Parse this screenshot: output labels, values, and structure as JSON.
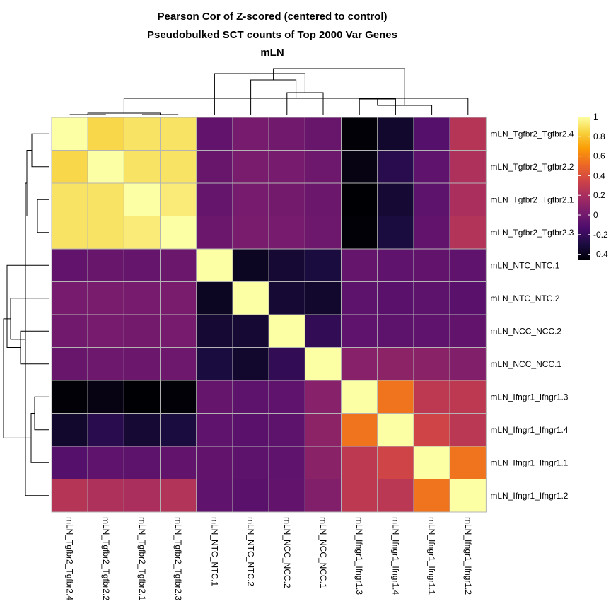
{
  "chart_data": {
    "type": "heatmap",
    "title_lines": [
      "Pearson Cor of Z-scored (centered to control)",
      "Pseudobulked SCT counts of Top 2000 Var Genes",
      "mLN"
    ],
    "row_labels": [
      "mLN_Tgfbr2_Tgfbr2.4",
      "mLN_Tgfbr2_Tgfbr2.2",
      "mLN_Tgfbr2_Tgfbr2.1",
      "mLN_Tgfbr2_Tgfbr2.3",
      "mLN_NTC_NTC.1",
      "mLN_NTC_NTC.2",
      "mLN_NCC_NCC.2",
      "mLN_NCC_NCC.1",
      "mLN_Ifngr1_Ifngr1.3",
      "mLN_Ifngr1_Ifngr1.4",
      "mLN_Ifngr1_Ifngr1.1",
      "mLN_Ifngr1_Ifngr1.2"
    ],
    "col_labels": [
      "mLN_Tgfbr2_Tgfbr2.4",
      "mLN_Tgfbr2_Tgfbr2.2",
      "mLN_Tgfbr2_Tgfbr2.1",
      "mLN_Tgfbr2_Tgfbr2.3",
      "mLN_NTC_NTC.1",
      "mLN_NTC_NTC.2",
      "mLN_NCC_NCC.2",
      "mLN_NCC_NCC.1",
      "mLN_Ifngr1_Ifngr1.3",
      "mLN_Ifngr1_Ifngr1.4",
      "mLN_Ifngr1_Ifngr1.1",
      "mLN_Ifngr1_Ifngr1.2"
    ],
    "values": [
      [
        1.0,
        0.86,
        0.9,
        0.9,
        -0.05,
        0.02,
        0.0,
        -0.03,
        -0.45,
        -0.35,
        -0.1,
        0.25
      ],
      [
        0.86,
        1.0,
        0.9,
        0.9,
        -0.03,
        0.03,
        0.02,
        -0.01,
        -0.42,
        -0.25,
        -0.06,
        0.22
      ],
      [
        0.9,
        0.9,
        1.0,
        0.93,
        -0.04,
        0.02,
        0.01,
        -0.02,
        -0.46,
        -0.33,
        -0.07,
        0.21
      ],
      [
        0.9,
        0.9,
        0.93,
        1.0,
        -0.02,
        0.03,
        0.02,
        -0.01,
        -0.45,
        -0.3,
        -0.05,
        0.24
      ],
      [
        -0.05,
        -0.03,
        -0.04,
        -0.02,
        1.0,
        -0.38,
        -0.33,
        -0.3,
        -0.04,
        -0.06,
        -0.05,
        -0.06
      ],
      [
        0.02,
        0.03,
        0.02,
        0.03,
        -0.38,
        1.0,
        -0.33,
        -0.35,
        -0.07,
        -0.08,
        -0.07,
        -0.08
      ],
      [
        0.0,
        0.02,
        0.01,
        0.02,
        -0.33,
        -0.33,
        1.0,
        -0.22,
        -0.06,
        -0.07,
        -0.06,
        -0.05
      ],
      [
        -0.03,
        -0.01,
        -0.02,
        -0.01,
        -0.3,
        -0.35,
        -0.22,
        1.0,
        0.08,
        0.1,
        0.09,
        0.06
      ],
      [
        -0.45,
        -0.42,
        -0.46,
        -0.45,
        -0.04,
        -0.07,
        -0.06,
        0.08,
        1.0,
        0.55,
        0.28,
        0.28
      ],
      [
        -0.35,
        -0.25,
        -0.33,
        -0.3,
        -0.06,
        -0.08,
        -0.07,
        0.1,
        0.55,
        1.0,
        0.35,
        0.27
      ],
      [
        -0.1,
        -0.06,
        -0.07,
        -0.05,
        -0.05,
        -0.07,
        -0.06,
        0.09,
        0.28,
        0.35,
        1.0,
        0.55
      ],
      [
        0.25,
        0.22,
        0.21,
        0.24,
        -0.06,
        -0.08,
        -0.05,
        0.06,
        0.28,
        0.27,
        0.55,
        1.0
      ]
    ],
    "scale": {
      "min": -0.46,
      "max": 1.0,
      "ticks": [
        {
          "value": 1,
          "label": "1"
        },
        {
          "value": 0.8,
          "label": "0.8"
        },
        {
          "value": 0.6,
          "label": "0.6"
        },
        {
          "value": 0.4,
          "label": "0.4"
        },
        {
          "value": 0.2,
          "label": "0.2"
        },
        {
          "value": 0,
          "label": "0"
        },
        {
          "value": -0.2,
          "label": "-0.2"
        },
        {
          "value": -0.4,
          "label": "-0.4"
        }
      ],
      "colors": [
        "#000004",
        "#1b0c41",
        "#4a0c6b",
        "#781c6d",
        "#a52c60",
        "#cf4446",
        "#ed6925",
        "#fb9b06",
        "#f7d13d",
        "#fcffa4"
      ]
    },
    "dendrogram": "hierarchical clustering tree shown for both rows and columns"
  }
}
